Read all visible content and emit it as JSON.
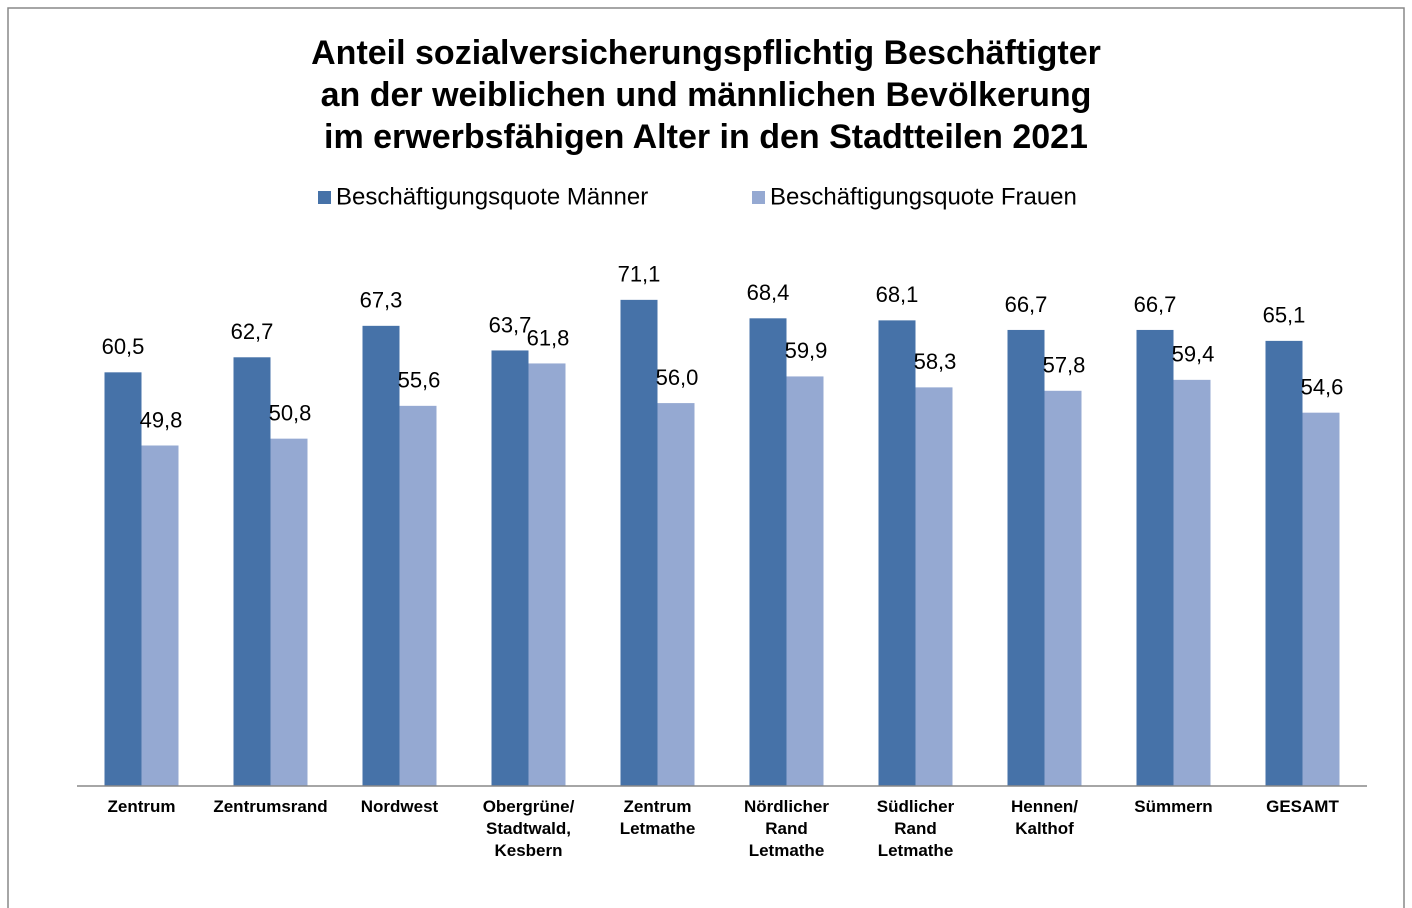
{
  "chart_data": {
    "type": "bar",
    "title": [
      "Anteil sozialversicherungspflichtig Beschäftigter",
      "an der weiblichen und männlichen Bevölkerung",
      "im erwerbsfähigen Alter in den Stadtteilen 2021"
    ],
    "categories": [
      "Zentrum",
      "Zentrumsrand",
      "Nordwest",
      "Obergrüne/\nStadtwald,\nKesbern",
      "Zentrum\nLetmathe",
      "Nördlicher\nRand\nLetmathe",
      "Südlicher\nRand\nLetmathe",
      "Hennen/\nKalthof",
      "Sümmern",
      "GESAMT"
    ],
    "series": [
      {
        "name": "Beschäftigungsquote Männer",
        "color": "#4672a8",
        "values": [
          60.5,
          62.7,
          67.3,
          63.7,
          71.1,
          68.4,
          68.1,
          66.7,
          66.7,
          65.1
        ],
        "value_labels": [
          "60,5",
          "62,7",
          "67,3",
          "63,7",
          "71,1",
          "68,4",
          "68,1",
          "66,7",
          "66,7",
          "65,1"
        ]
      },
      {
        "name": "Beschäftigungsquote Frauen",
        "color": "#95a9d2",
        "values": [
          49.8,
          50.8,
          55.6,
          61.8,
          56.0,
          59.9,
          58.3,
          57.8,
          59.4,
          54.6
        ],
        "value_labels": [
          "49,8",
          "50,8",
          "55,6",
          "61,8",
          "56,0",
          "59,9",
          "58,3",
          "57,8",
          "59,4",
          "54,6"
        ]
      }
    ],
    "ylim": [
      0,
      80
    ],
    "legend": "top"
  }
}
